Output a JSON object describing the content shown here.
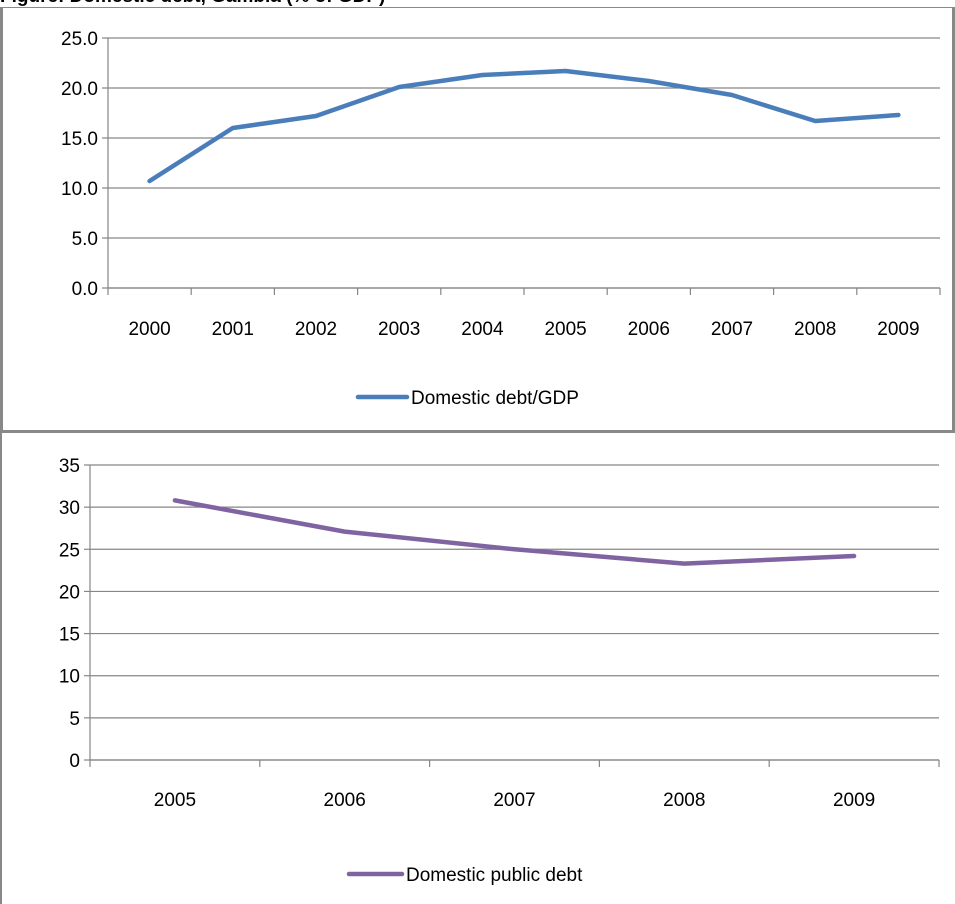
{
  "heading": "Figure: Domestic debt, Gambia (% of GDP)",
  "chart_data": [
    {
      "type": "line",
      "x": [
        "2000",
        "2001",
        "2002",
        "2003",
        "2004",
        "2005",
        "2006",
        "2007",
        "2008",
        "2009"
      ],
      "series": [
        {
          "name": "Domestic debt/GDP",
          "values": [
            10.7,
            16.0,
            17.2,
            20.1,
            21.3,
            21.7,
            20.7,
            19.3,
            16.7,
            17.3
          ]
        }
      ],
      "yticks": [
        "0.0",
        "5.0",
        "10.0",
        "15.0",
        "20.0",
        "25.0"
      ],
      "ylim": [
        0,
        25
      ],
      "grid": true,
      "legend": "bottom",
      "color": "#4a7ebb"
    },
    {
      "type": "line",
      "x": [
        "2005",
        "2006",
        "2007",
        "2008",
        "2009"
      ],
      "series": [
        {
          "name": "Domestic public debt",
          "values": [
            30.8,
            27.1,
            25.0,
            23.3,
            24.2
          ]
        }
      ],
      "yticks": [
        "0",
        "5",
        "10",
        "15",
        "20",
        "25",
        "30",
        "35"
      ],
      "ylim": [
        0,
        35
      ],
      "grid": true,
      "legend": "bottom",
      "color": "#8064a2"
    }
  ]
}
